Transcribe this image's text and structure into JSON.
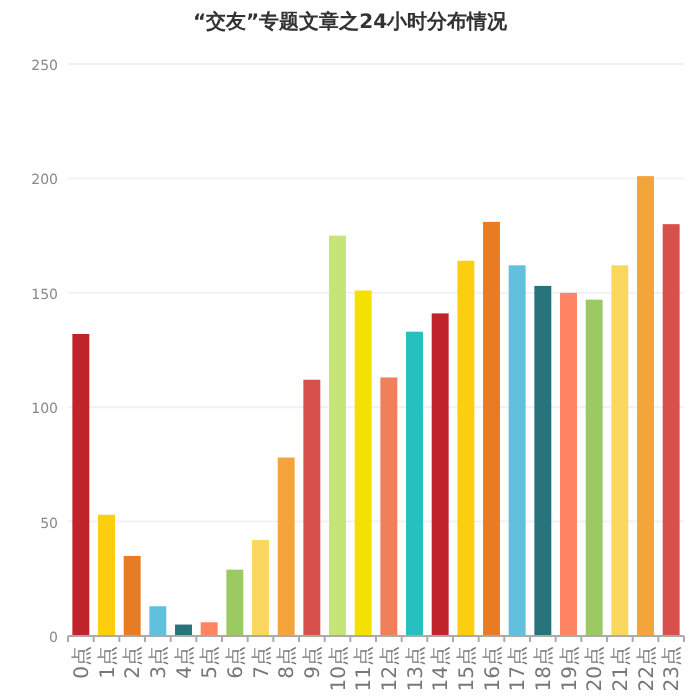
{
  "chart_data": {
    "type": "bar",
    "title": "“交友”专题文章之24小时分布情况",
    "categories": [
      "0点",
      "1点",
      "2点",
      "3点",
      "4点",
      "5点",
      "6点",
      "7点",
      "8点",
      "9点",
      "10点",
      "11点",
      "12点",
      "13点",
      "14点",
      "15点",
      "16点",
      "17点",
      "18点",
      "19点",
      "20点",
      "21点",
      "22点",
      "23点"
    ],
    "values": [
      132,
      53,
      35,
      13,
      5,
      6,
      29,
      42,
      78,
      112,
      175,
      151,
      113,
      133,
      141,
      164,
      181,
      162,
      153,
      150,
      147,
      162,
      201,
      180
    ],
    "colors": [
      "#c1232b",
      "#fcce10",
      "#e87c25",
      "#60c0dd",
      "#27727b",
      "#fe8463",
      "#9bca63",
      "#fad860",
      "#f3a43b",
      "#d7504b",
      "#c6e579",
      "#f4e001",
      "#f0805a",
      "#26c0c0",
      "#c1232b",
      "#fcce10",
      "#e87c25",
      "#60c0dd",
      "#27727b",
      "#fe8463",
      "#9bca63",
      "#fad860",
      "#f3a43b",
      "#d7504b"
    ],
    "ylim": [
      0,
      250
    ],
    "yticks": [
      0,
      50,
      100,
      150,
      200,
      250
    ],
    "grid": "y"
  }
}
